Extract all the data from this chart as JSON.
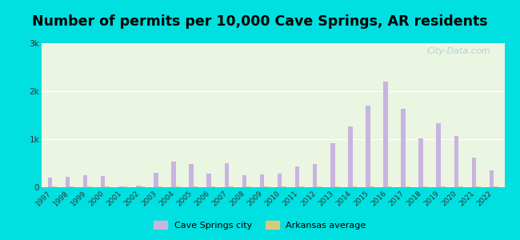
{
  "title": "Number of permits per 10,000 Cave Springs, AR residents",
  "years": [
    1997,
    1998,
    1999,
    2000,
    2001,
    2002,
    2003,
    2004,
    2005,
    2006,
    2007,
    2008,
    2009,
    2010,
    2011,
    2012,
    2013,
    2014,
    2015,
    2016,
    2017,
    2018,
    2019,
    2020,
    2021,
    2022
  ],
  "city_values": [
    200,
    220,
    250,
    230,
    10,
    30,
    300,
    530,
    490,
    280,
    500,
    250,
    270,
    290,
    430,
    480,
    920,
    1270,
    1700,
    2200,
    1630,
    1020,
    1330,
    1070,
    620,
    350
  ],
  "state_values": [
    15,
    15,
    15,
    15,
    15,
    15,
    15,
    15,
    15,
    15,
    15,
    15,
    15,
    15,
    15,
    15,
    15,
    15,
    15,
    15,
    15,
    15,
    15,
    15,
    15,
    15
  ],
  "city_color": "#c8b4e0",
  "state_color": "#d4cc7c",
  "bg_color": "#00e0e0",
  "plot_bg": "#eaf5e2",
  "ylim": [
    0,
    3000
  ],
  "yticks": [
    0,
    1000,
    2000,
    3000
  ],
  "ytick_labels": [
    "0",
    "1k",
    "2k",
    "3k"
  ],
  "bar_width": 0.25,
  "title_fontsize": 12.5,
  "legend_city": "Cave Springs city",
  "legend_state": "Arkansas average",
  "watermark": "City-Data.com"
}
